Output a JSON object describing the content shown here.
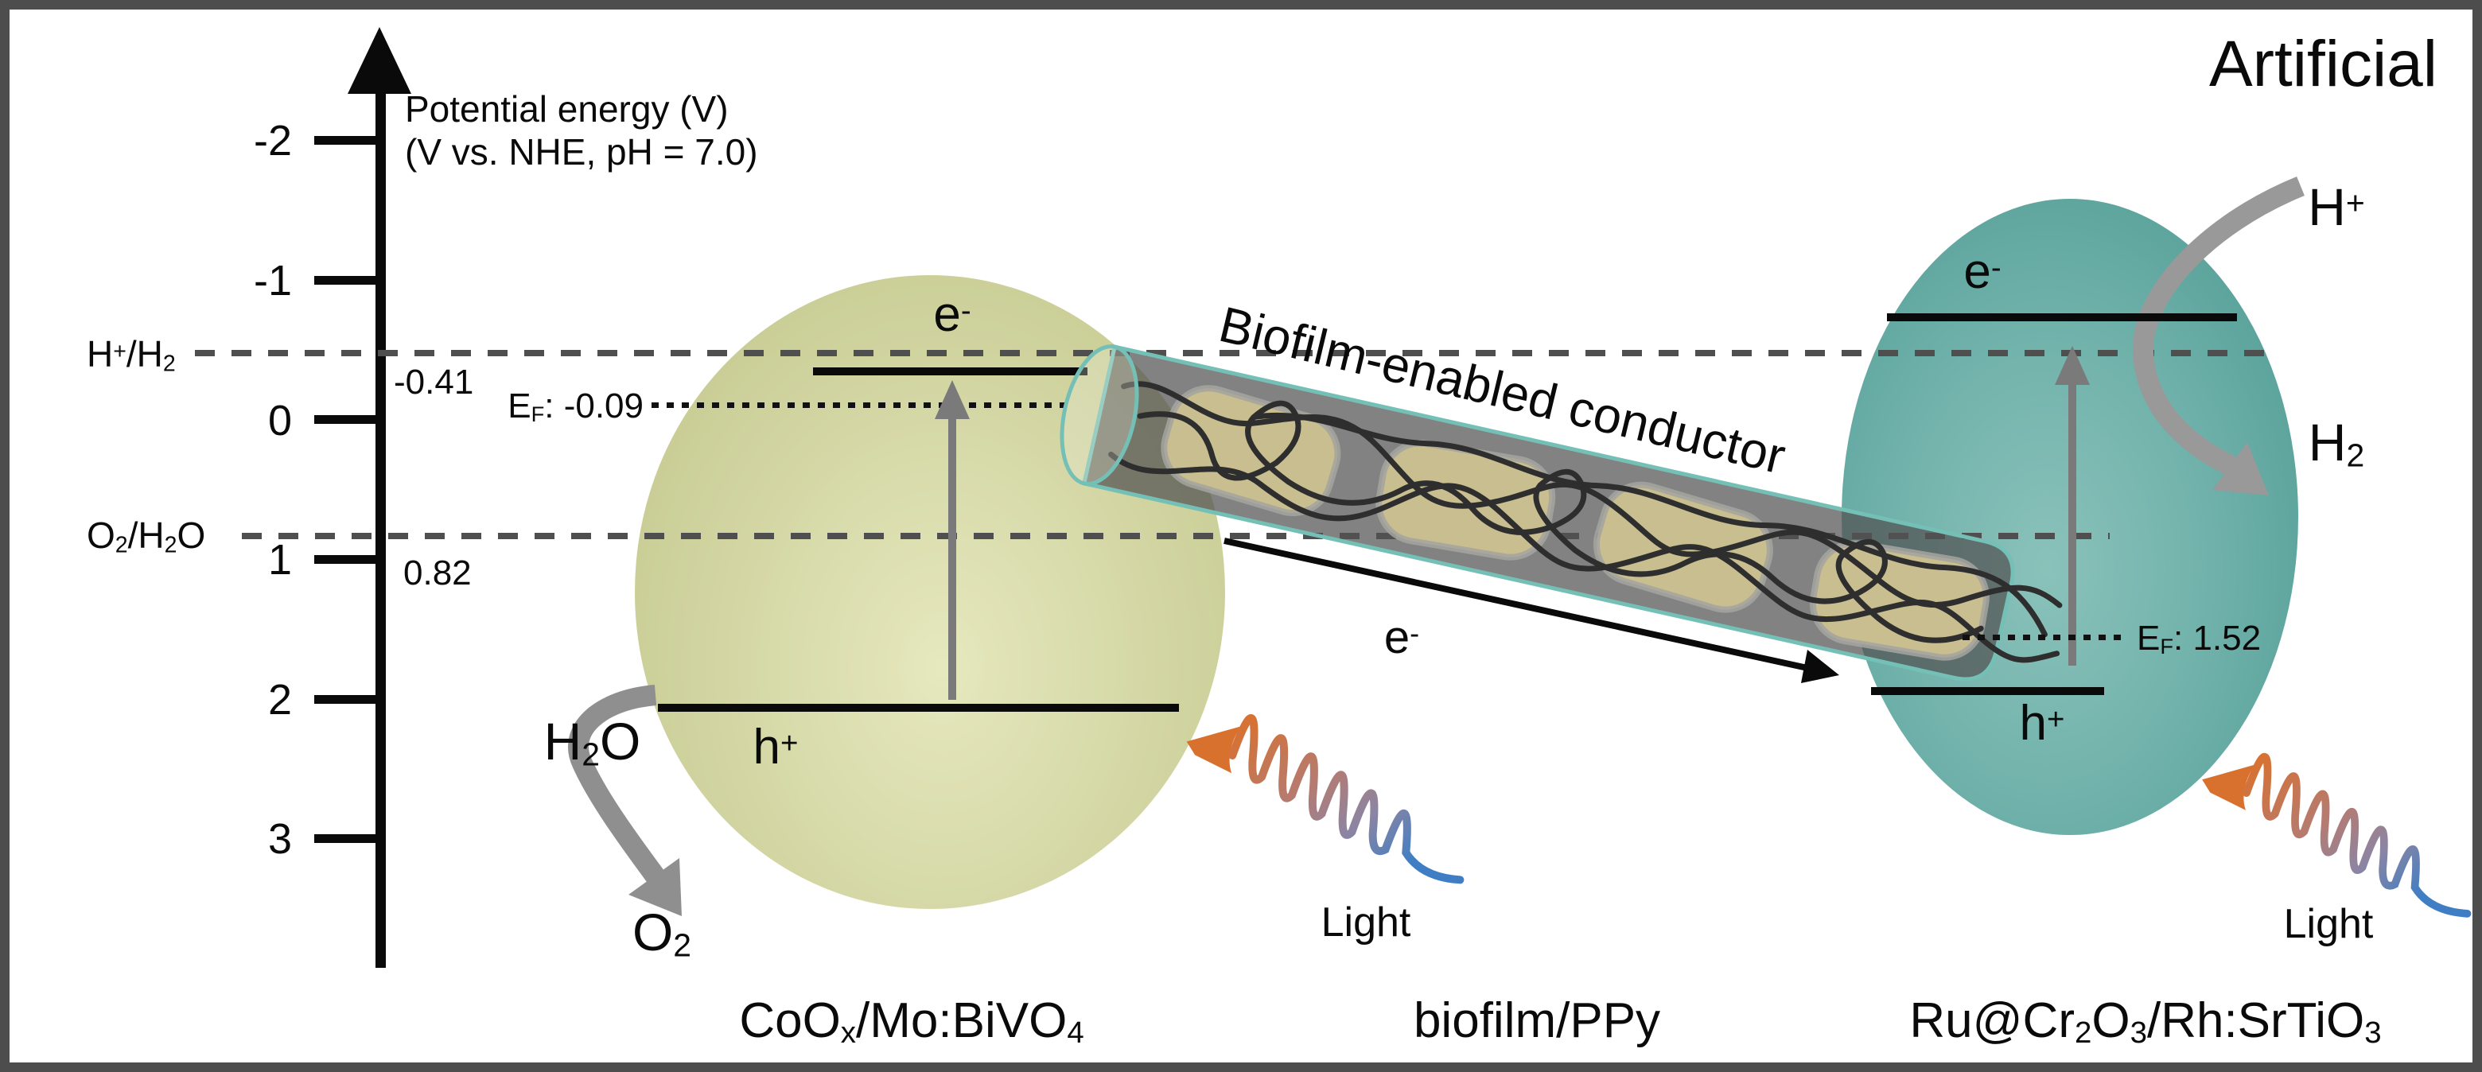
{
  "figure": {
    "corner_label": "Artificial",
    "type_note": "energy-band Z-scheme diagram"
  },
  "axis": {
    "title_line1": "Potential energy (V)",
    "title_line2": "(V vs. NHE, pH = 7.0)",
    "ticks": [
      {
        "label": "-2"
      },
      {
        "label": "-1"
      },
      {
        "label": "0"
      },
      {
        "label": "1"
      },
      {
        "label": "2"
      },
      {
        "label": "3"
      }
    ]
  },
  "redox": {
    "h2_couple": {
      "label": "H^+/H_2",
      "value": "-0.41"
    },
    "o2_couple": {
      "label": "O_2/H_2O",
      "value": "0.82"
    }
  },
  "left_photocatalyst": {
    "name": "CoO_x/Mo:BiVO_4",
    "electron": "e^-",
    "hole": "h^+",
    "fermi_level": "E_F: -0.09",
    "reactant": "H_2O",
    "product": "O_2",
    "light_label": "Light"
  },
  "conductor": {
    "title": "Biofilm-enabled conductor",
    "electron_flow": "e^-",
    "name": "biofilm/PPy"
  },
  "right_photocatalyst": {
    "name": "Ru@Cr_2O_3/Rh:SrTiO_3",
    "electron": "e^-",
    "hole": "h^+",
    "fermi_level": "E_F: 1.52",
    "reactant": "H^+",
    "product": "H_2",
    "light_label": "Light"
  },
  "colors": {
    "left_ellipse": "#d5d8a6",
    "right_ellipse": "#6fb1aa",
    "conductor_outline": "#74c0b6",
    "conductor_fill": "rgba(82,82,82,0.72)",
    "bacteria_blob": "#c9be8f",
    "arrow_gray": "#8f8f8f",
    "light_orange": "#d9712e",
    "light_blue": "#3f7ec4"
  }
}
